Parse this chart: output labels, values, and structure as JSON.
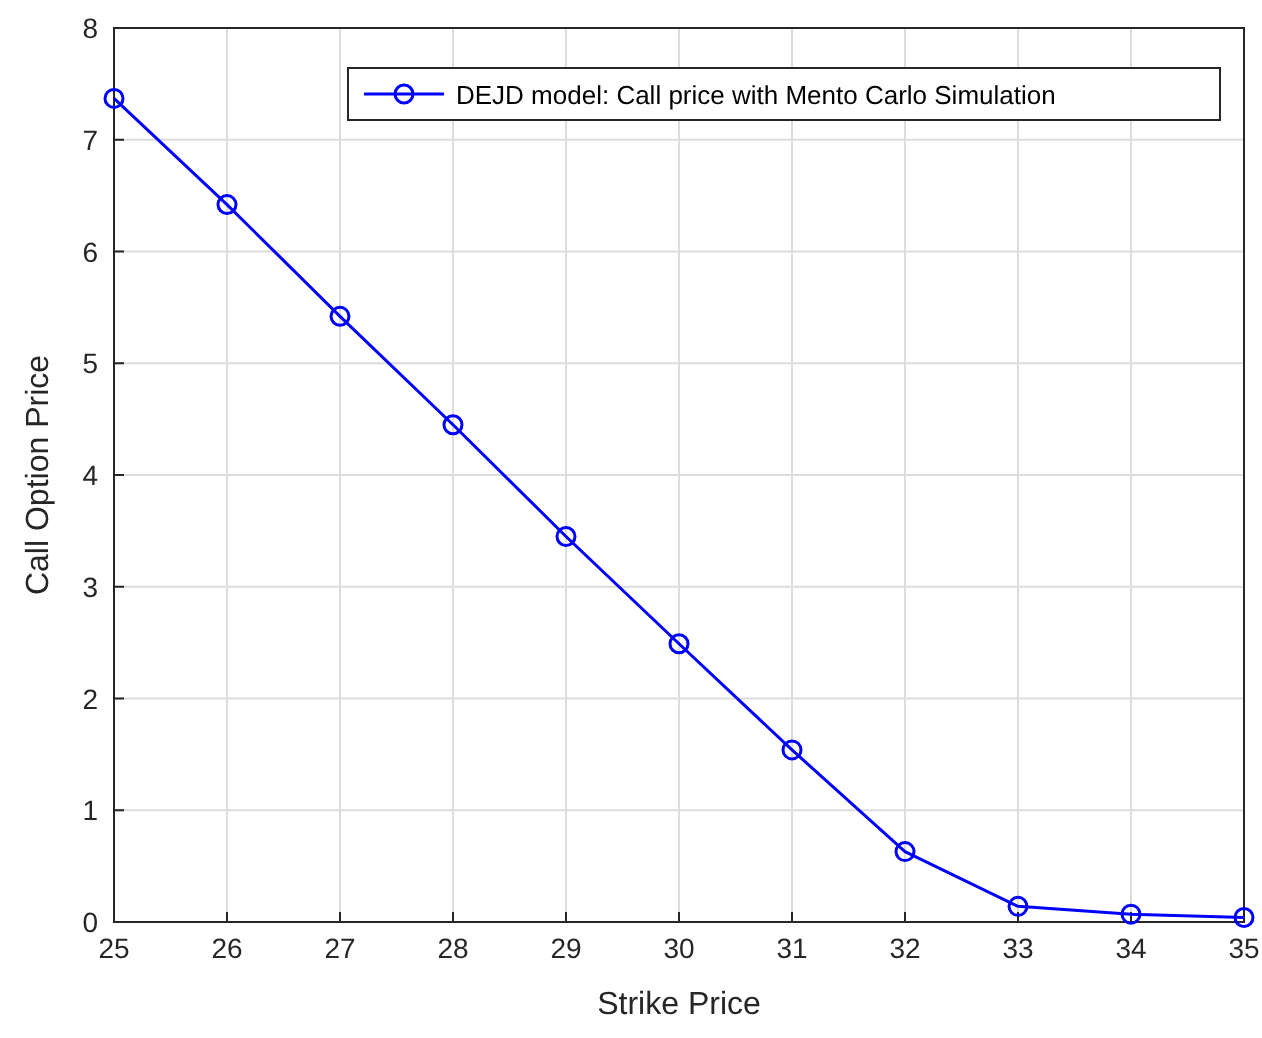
{
  "chart_data": {
    "type": "line",
    "xlabel": "Strike Price",
    "ylabel": "Call Option Price",
    "x": [
      25,
      26,
      27,
      28,
      29,
      30,
      31,
      32,
      33,
      34,
      35
    ],
    "series": [
      {
        "name": "DEJD model: Call price with Mento Carlo Simulation",
        "color": "#0000ff",
        "values": [
          7.37,
          6.42,
          5.42,
          4.45,
          3.45,
          2.49,
          1.54,
          0.63,
          0.14,
          0.07,
          0.04
        ]
      }
    ],
    "xlim": [
      25,
      35
    ],
    "xticks": [
      25,
      26,
      27,
      28,
      29,
      30,
      31,
      32,
      33,
      34,
      35
    ],
    "ylim": [
      0,
      8
    ],
    "yticks": [
      0,
      1,
      2,
      3,
      4,
      5,
      6,
      7,
      8
    ],
    "grid": true,
    "legend": "top right",
    "marker": "circle",
    "line_style": "solid"
  }
}
